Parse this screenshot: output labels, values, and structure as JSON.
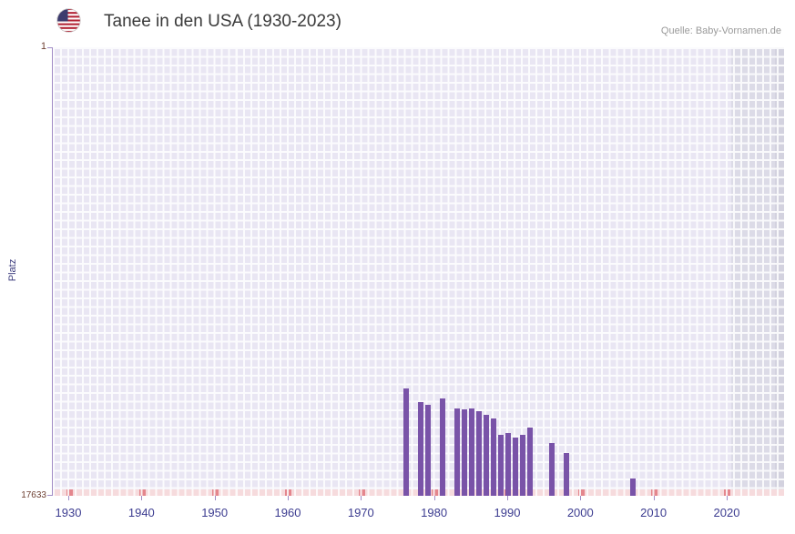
{
  "header": {
    "title": "Tanee in den USA (1930-2023)",
    "source": "Quelle: Baby-Vornamen.de",
    "flag_icon": "us-flag-icon"
  },
  "chart_data": {
    "type": "bar",
    "title": "Tanee in den USA (1930-2023)",
    "xlabel": "",
    "ylabel": "Platz",
    "x_range": [
      1930,
      2023
    ],
    "x_ticks": [
      1930,
      1940,
      1950,
      1960,
      1970,
      1980,
      1990,
      2000,
      2010,
      2020
    ],
    "y_axis": {
      "top_label": "1",
      "bottom_label": "17633",
      "min": 1,
      "max": 17633,
      "inverted": true
    },
    "grid": true,
    "legend": "none",
    "points": [
      {
        "year": 1976,
        "rank": 13400
      },
      {
        "year": 1978,
        "rank": 13950
      },
      {
        "year": 1979,
        "rank": 14050
      },
      {
        "year": 1981,
        "rank": 13800
      },
      {
        "year": 1983,
        "rank": 14200
      },
      {
        "year": 1984,
        "rank": 14250
      },
      {
        "year": 1985,
        "rank": 14200
      },
      {
        "year": 1986,
        "rank": 14300
      },
      {
        "year": 1987,
        "rank": 14450
      },
      {
        "year": 1988,
        "rank": 14600
      },
      {
        "year": 1989,
        "rank": 15250
      },
      {
        "year": 1990,
        "rank": 15150
      },
      {
        "year": 1991,
        "rank": 15350
      },
      {
        "year": 1992,
        "rank": 15250
      },
      {
        "year": 1993,
        "rank": 14950
      },
      {
        "year": 1996,
        "rank": 15550
      },
      {
        "year": 1998,
        "rank": 15950
      },
      {
        "year": 2007,
        "rank": 16950
      }
    ],
    "shaded_band": {
      "from_year": 2021,
      "to_year": 2023
    },
    "colors": {
      "bar": "#7953a8",
      "plot_bg": "#e9e6f3",
      "grid_line": "#ffffff",
      "baseline": "#f6dbdd",
      "baseline_mark": "#e4868d",
      "band": "#dcdbe7",
      "band_dark": "#d3d2df",
      "axis": "#a18cc6",
      "x_tick_label": "#3c3c90",
      "y_tick_label": "#6e4033",
      "axis_title": "#3d3d7e",
      "title": "#3a3a3a",
      "source": "#9a9a9a"
    }
  }
}
